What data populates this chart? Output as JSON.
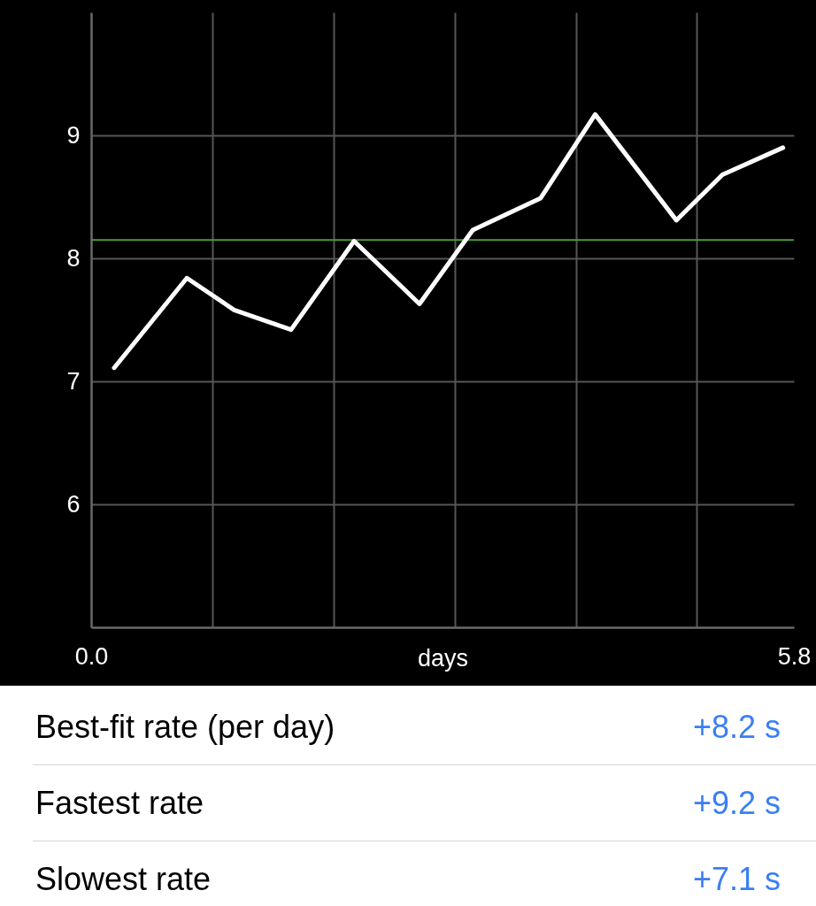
{
  "chart_data": {
    "type": "line",
    "xlabel": "days",
    "x": [
      0.19,
      0.79,
      1.18,
      1.65,
      2.17,
      2.71,
      3.15,
      3.71,
      4.16,
      4.83,
      5.21,
      5.71
    ],
    "series": [
      {
        "color": "#ffffff",
        "values": [
          7.11,
          7.84,
          7.58,
          7.42,
          8.14,
          7.63,
          8.23,
          8.49,
          9.17,
          8.31,
          8.68,
          8.9
        ]
      }
    ],
    "xlim": [
      0,
      5.8
    ],
    "ylim": [
      5,
      10
    ],
    "xticks": [
      {
        "value": 0,
        "label": "0.0"
      },
      {
        "value": 1,
        "label": null
      },
      {
        "value": 2,
        "label": null
      },
      {
        "value": 3,
        "label": null
      },
      {
        "value": 4,
        "label": null
      },
      {
        "value": 5,
        "label": null
      },
      {
        "value": 5.8,
        "label": "5.8"
      }
    ],
    "yticks": [
      6,
      7,
      8,
      9
    ],
    "grid": true,
    "line_style": "solid",
    "ref_lines": [
      {
        "axis": "y",
        "value": 8.15,
        "color": "#4c9a3c"
      }
    ],
    "annotations": [
      "Best-fit rate (per day)",
      "+8.2 s",
      "Fastest rate",
      "+9.2 s",
      "Slowest rate",
      "+7.1 s"
    ]
  }
}
